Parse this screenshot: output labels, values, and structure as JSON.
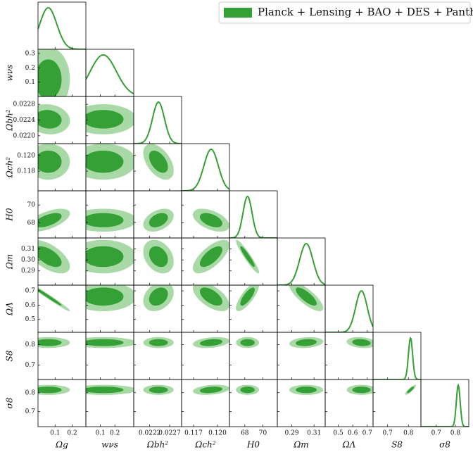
{
  "chart_data": {
    "type": "corner",
    "legend": {
      "label": "Planck + Lensing + BAO + DES + Pantheon",
      "color": "#35a035",
      "corner": "top-right"
    },
    "inner_color": "#35a035",
    "outer_color": "#a9d9a6",
    "parameters": [
      {
        "label": "Ωg",
        "lim": [
          0,
          0.28
        ],
        "xticks": [
          0.1,
          0.2
        ],
        "yticks": [],
        "mean": 0.06,
        "sigma": 0.05
      },
      {
        "label": "wνs",
        "lim": [
          0,
          0.33
        ],
        "xticks": [
          0.1,
          0.2
        ],
        "yticks": [
          0.1,
          0.2,
          0.3
        ],
        "mean": 0.12,
        "sigma": 0.09
      },
      {
        "label": "Ωbh²",
        "lim": [
          0.0218,
          0.023
        ],
        "xticks": [
          0.0222,
          0.0227
        ],
        "yticks": [
          {
            "value": 0.022,
            "label": "0.0220"
          },
          0.0224,
          0.0228
        ],
        "mean": 0.02242,
        "sigma": 0.00015
      },
      {
        "label": "Ωch²",
        "lim": [
          0.1155,
          0.1215
        ],
        "xticks": [
          0.117,
          {
            "value": 0.12,
            "label": "0.120"
          }
        ],
        "yticks": [
          0.118,
          {
            "value": 0.12,
            "label": "0.120"
          }
        ],
        "mean": 0.1192,
        "sigma": 0.0009
      },
      {
        "label": "H0",
        "lim": [
          66.3,
          71.6
        ],
        "xticks": [
          68,
          70
        ],
        "yticks": [
          68,
          70
        ],
        "mean": 68.3,
        "sigma": 0.5
      },
      {
        "label": "Ωm",
        "lim": [
          0.277,
          0.32
        ],
        "xticks": [
          0.29,
          0.31
        ],
        "yticks": [
          0.29,
          {
            "value": 0.3,
            "label": "0.30"
          },
          0.31
        ],
        "mean": 0.303,
        "sigma": 0.006
      },
      {
        "label": "ΩΛ",
        "lim": [
          0.41,
          0.74
        ],
        "xticks": [
          0.5,
          0.6,
          0.7
        ],
        "yticks": [
          0.5,
          0.6,
          0.7
        ],
        "mean": 0.66,
        "sigma": 0.04
      },
      {
        "label": "S8",
        "lim": [
          0.63,
          0.86
        ],
        "xticks": [
          0.7,
          0.8
        ],
        "yticks": [
          0.7,
          0.8
        ],
        "mean": 0.81,
        "sigma": 0.01
      },
      {
        "label": "σ8",
        "lim": [
          0.62,
          0.87
        ],
        "xticks": [
          0.7,
          0.8
        ],
        "yticks": [
          0.7,
          0.8
        ],
        "mean": 0.815,
        "sigma": 0.01
      }
    ],
    "correlation": [
      [],
      [
        0
      ],
      [
        -0.1,
        0
      ],
      [
        0,
        0,
        -0.5
      ],
      [
        0.6,
        0,
        0.4,
        -0.5
      ],
      [
        -0.6,
        0,
        -0.3,
        0.7,
        -0.95
      ],
      [
        -0.99,
        0,
        0.3,
        -0.6,
        0.8,
        -0.8
      ],
      [
        0,
        0,
        0,
        0.3,
        0,
        0.2,
        -0.2
      ],
      [
        0,
        0,
        0,
        0.3,
        0,
        0,
        0,
        0.9
      ]
    ]
  }
}
